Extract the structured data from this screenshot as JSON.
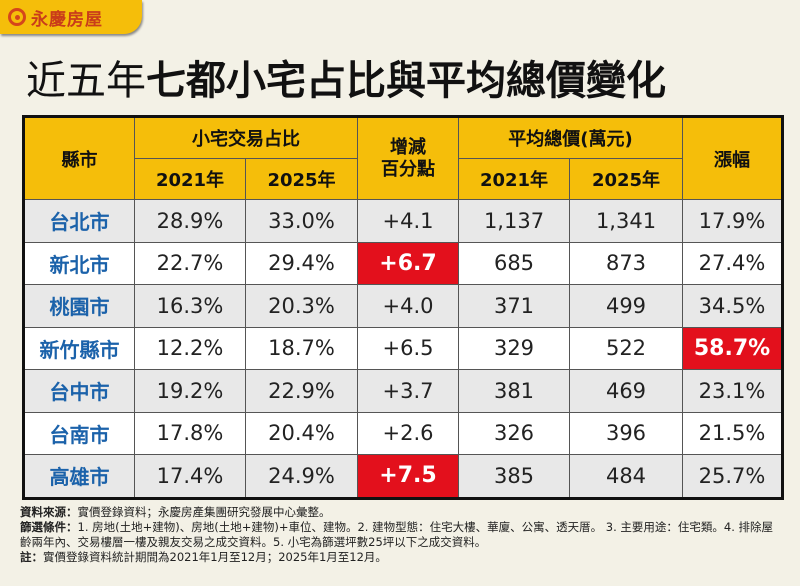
{
  "logo": {
    "text": "永慶房屋"
  },
  "title": {
    "light": "近五年",
    "bold": "七都小宅占比與平均總價變化"
  },
  "table": {
    "h_city": "縣市",
    "h_share": "小宅交易占比",
    "h_change": "增減\n百分點",
    "h_price": "平均總價(萬元)",
    "h_rise": "漲幅",
    "y2021": "2021年",
    "y2025": "2025年",
    "rows": [
      {
        "city": "台北市",
        "s21": "28.9%",
        "s25": "33.0%",
        "chg": "+4.1",
        "p21": "1,137",
        "p25": "1,341",
        "rise": "17.9%"
      },
      {
        "city": "新北市",
        "s21": "22.7%",
        "s25": "29.4%",
        "chg": "+6.7",
        "p21": "685",
        "p25": "873",
        "rise": "27.4%"
      },
      {
        "city": "桃園市",
        "s21": "16.3%",
        "s25": "20.3%",
        "chg": "+4.0",
        "p21": "371",
        "p25": "499",
        "rise": "34.5%"
      },
      {
        "city": "新竹縣市",
        "s21": "12.2%",
        "s25": "18.7%",
        "chg": "+6.5",
        "p21": "329",
        "p25": "522",
        "rise": "58.7%"
      },
      {
        "city": "台中市",
        "s21": "19.2%",
        "s25": "22.9%",
        "chg": "+3.7",
        "p21": "381",
        "p25": "469",
        "rise": "23.1%"
      },
      {
        "city": "台南市",
        "s21": "17.8%",
        "s25": "20.4%",
        "chg": "+2.6",
        "p21": "326",
        "p25": "396",
        "rise": "21.5%"
      },
      {
        "city": "高雄市",
        "s21": "17.4%",
        "s25": "24.9%",
        "chg": "+7.5",
        "p21": "385",
        "p25": "484",
        "rise": "25.7%"
      }
    ]
  },
  "highlights": {
    "color": "#e3101c",
    "cells": [
      "新北市.chg",
      "新竹縣市.rise",
      "高雄市.chg"
    ]
  },
  "notes": {
    "source_label": "資料來源：",
    "source": "實價登錄資料；永慶房產集團研究發展中心彙整。",
    "filter_label": "篩選條件：",
    "filter": "1. 房地(土地+建物)、房地(土地+建物)+車位、建物。2. 建物型態：住宅大樓、華廈、公寓、透天厝。 3. 主要用途：住宅類。4. 排除屋齡兩年內、交易樓層一樓及親友交易之成交資料。5. 小宅為篩選坪數25坪以下之成交資料。",
    "note_label": "註：",
    "note": "實價登錄資料統計期間為2021年1月至12月；2025年1月至12月。"
  }
}
